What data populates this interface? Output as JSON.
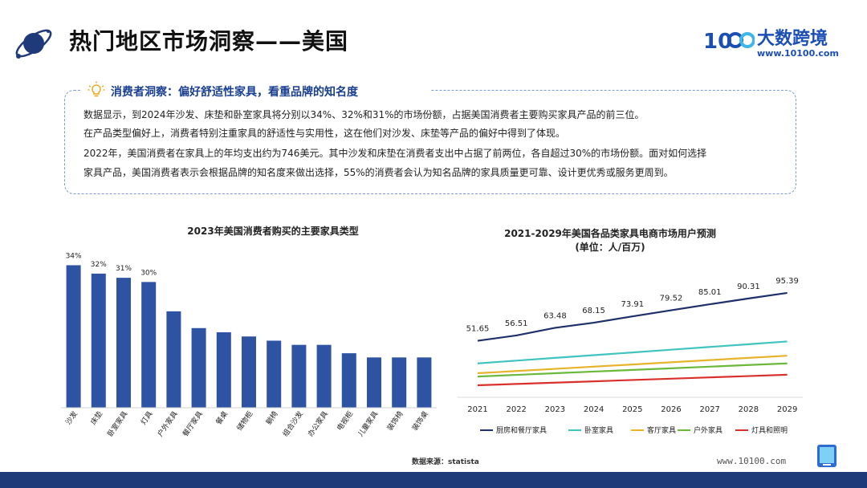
{
  "header": {
    "title": "热门地区市场洞察——美国",
    "brand_name": "大数跨境",
    "brand_url": "www.10100.com",
    "logo_text": "10"
  },
  "insight": {
    "title": "消费者洞察：偏好舒适性家具，看重品牌的知名度",
    "paragraphs": [
      "数据显示，到2024年沙发、床垫和卧室家具将分别以34%、32%和31%的市场份额，占据美国消费者主要购买家具产品的前三位。",
      "在产品类型偏好上，消费者特别注重家具的舒适性与实用性，这在他们对沙发、床垫等产品的偏好中得到了体现。",
      "2022年，美国消费者在家具上的年均支出约为746美元。其中沙发和床垫在消费者支出中占据了前两位，各自超过30%的市场份额。面对如何选择",
      "家具产品，美国消费者表示会根据品牌的知名度来做出选择，55%的消费者会认为知名品牌的家具质量更可靠、设计更优秀或服务更周到。"
    ]
  },
  "colors": {
    "bar": "#2e53a2",
    "series": [
      "#1f2f6b",
      "#3fc4c0",
      "#e6b32a",
      "#6cb83a",
      "#d9302b"
    ]
  },
  "chart_data": [
    {
      "type": "bar",
      "title": "2023年美国消费者购买的主要家具类型",
      "categories": [
        "沙发",
        "床垫",
        "卧室家具",
        "灯具",
        "户外家具",
        "餐厅家具",
        "餐桌",
        "储物柜",
        "躺椅",
        "组合沙发",
        "办公家具",
        "电视柜",
        "儿童家具",
        "装饰椅",
        "装饰桌"
      ],
      "values": [
        34,
        32,
        31,
        30,
        23,
        19,
        18,
        17,
        16,
        15,
        15,
        13,
        12,
        12,
        12
      ],
      "data_labels": [
        "34%",
        "32%",
        "31%",
        "30%",
        "",
        "",
        "",
        "",
        "",
        "",
        "",
        "",
        "",
        "",
        ""
      ],
      "ylim": [
        0,
        36
      ]
    },
    {
      "type": "line",
      "title": "2021-2029年美国各品类家具电商市场用户预测",
      "subtitle": "(单位：人/百万)",
      "x": [
        "2021",
        "2022",
        "2023",
        "2024",
        "2025",
        "2026",
        "2027",
        "2028",
        "2029"
      ],
      "ylim": [
        0,
        110
      ],
      "series": [
        {
          "name": "厨房和餐厅家具",
          "values": [
            51.65,
            56.51,
            63.48,
            68.15,
            73.91,
            79.52,
            85.01,
            90.31,
            95.39
          ],
          "labels": [
            "51.65",
            "56.51",
            "63.48",
            "68.15",
            "73.91",
            "79.52",
            "85.01",
            "90.31",
            "95.39"
          ]
        },
        {
          "name": "卧室家具",
          "values": [
            31,
            33.5,
            36,
            38.5,
            41,
            43.5,
            46,
            48.5,
            51
          ]
        },
        {
          "name": "客厅家具",
          "values": [
            22,
            24,
            26,
            28,
            30,
            32,
            34,
            36,
            38
          ]
        },
        {
          "name": "户外家具",
          "values": [
            19,
            20.5,
            22,
            23.5,
            25,
            26.5,
            28,
            29.5,
            31
          ]
        },
        {
          "name": "灯具和照明",
          "values": [
            11,
            12.2,
            13.4,
            14.6,
            15.8,
            17,
            18.2,
            19.4,
            20.6
          ]
        }
      ]
    }
  ],
  "footer": {
    "source": "数据来源：statista",
    "url": "www.10100.com"
  }
}
